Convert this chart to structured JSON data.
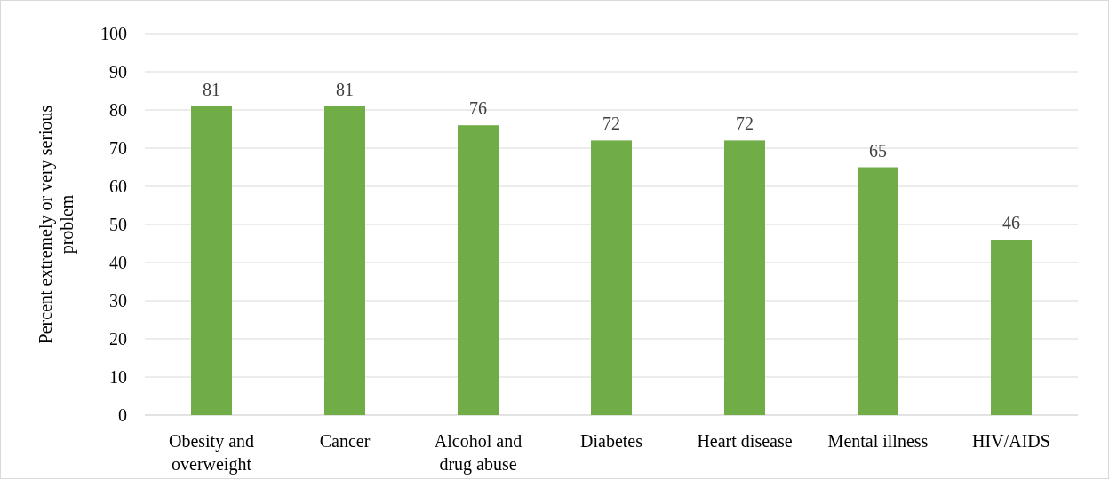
{
  "chart_data": {
    "type": "bar",
    "categories": [
      "Obesity and overweight",
      "Cancer",
      "Alcohol and drug abuse",
      "Diabetes",
      "Heart disease",
      "Mental illness",
      "HIV/AIDS"
    ],
    "values": [
      81,
      81,
      76,
      72,
      72,
      65,
      46
    ],
    "color": "#70ad47",
    "ylabel": "Percent extremely or very serious problem",
    "ylim": [
      0,
      100
    ],
    "yticks": [
      0,
      10,
      20,
      30,
      40,
      50,
      60,
      70,
      80,
      90,
      100
    ],
    "grid": "y",
    "data_labels": true
  }
}
